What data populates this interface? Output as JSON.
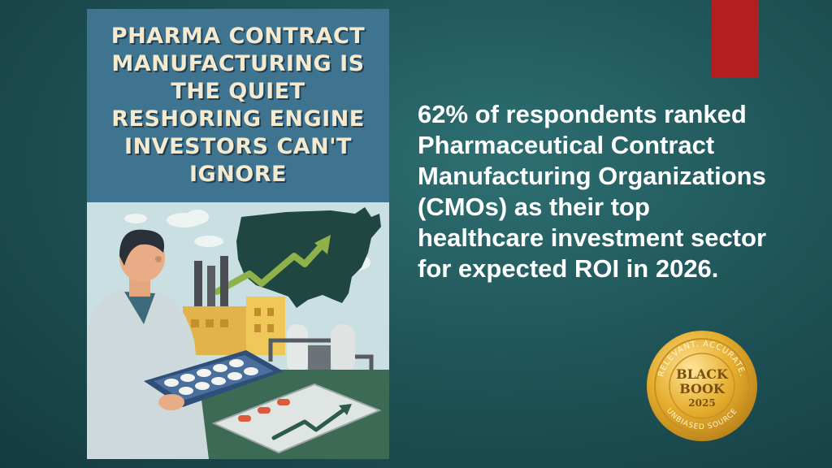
{
  "poster": {
    "title_lines": [
      "PHARMA CONTRACT",
      "MANUFACTURING IS",
      "THE QUIET",
      "RESHORING ENGINE",
      "INVESTORS CAN'T IGNORE"
    ]
  },
  "headline": {
    "lines": [
      "62% of respondents ranked",
      "Pharmaceutical Contract",
      "Manufacturing Organizations",
      "(CMOs) as their top",
      "healthcare investment sector",
      "for expected ROI in 2026."
    ]
  },
  "badge": {
    "top_arc": "RELEVANT. ACCURATE.",
    "line1": "BLACK",
    "line2": "BOOK",
    "year": "2025",
    "bottom_arc": "UNBIASED SOURCE"
  },
  "colors": {
    "background": "#1f5558",
    "accent_bar": "#b41e1e",
    "poster_header": "#3f7490",
    "badge_gold": "#e4ad2c"
  }
}
